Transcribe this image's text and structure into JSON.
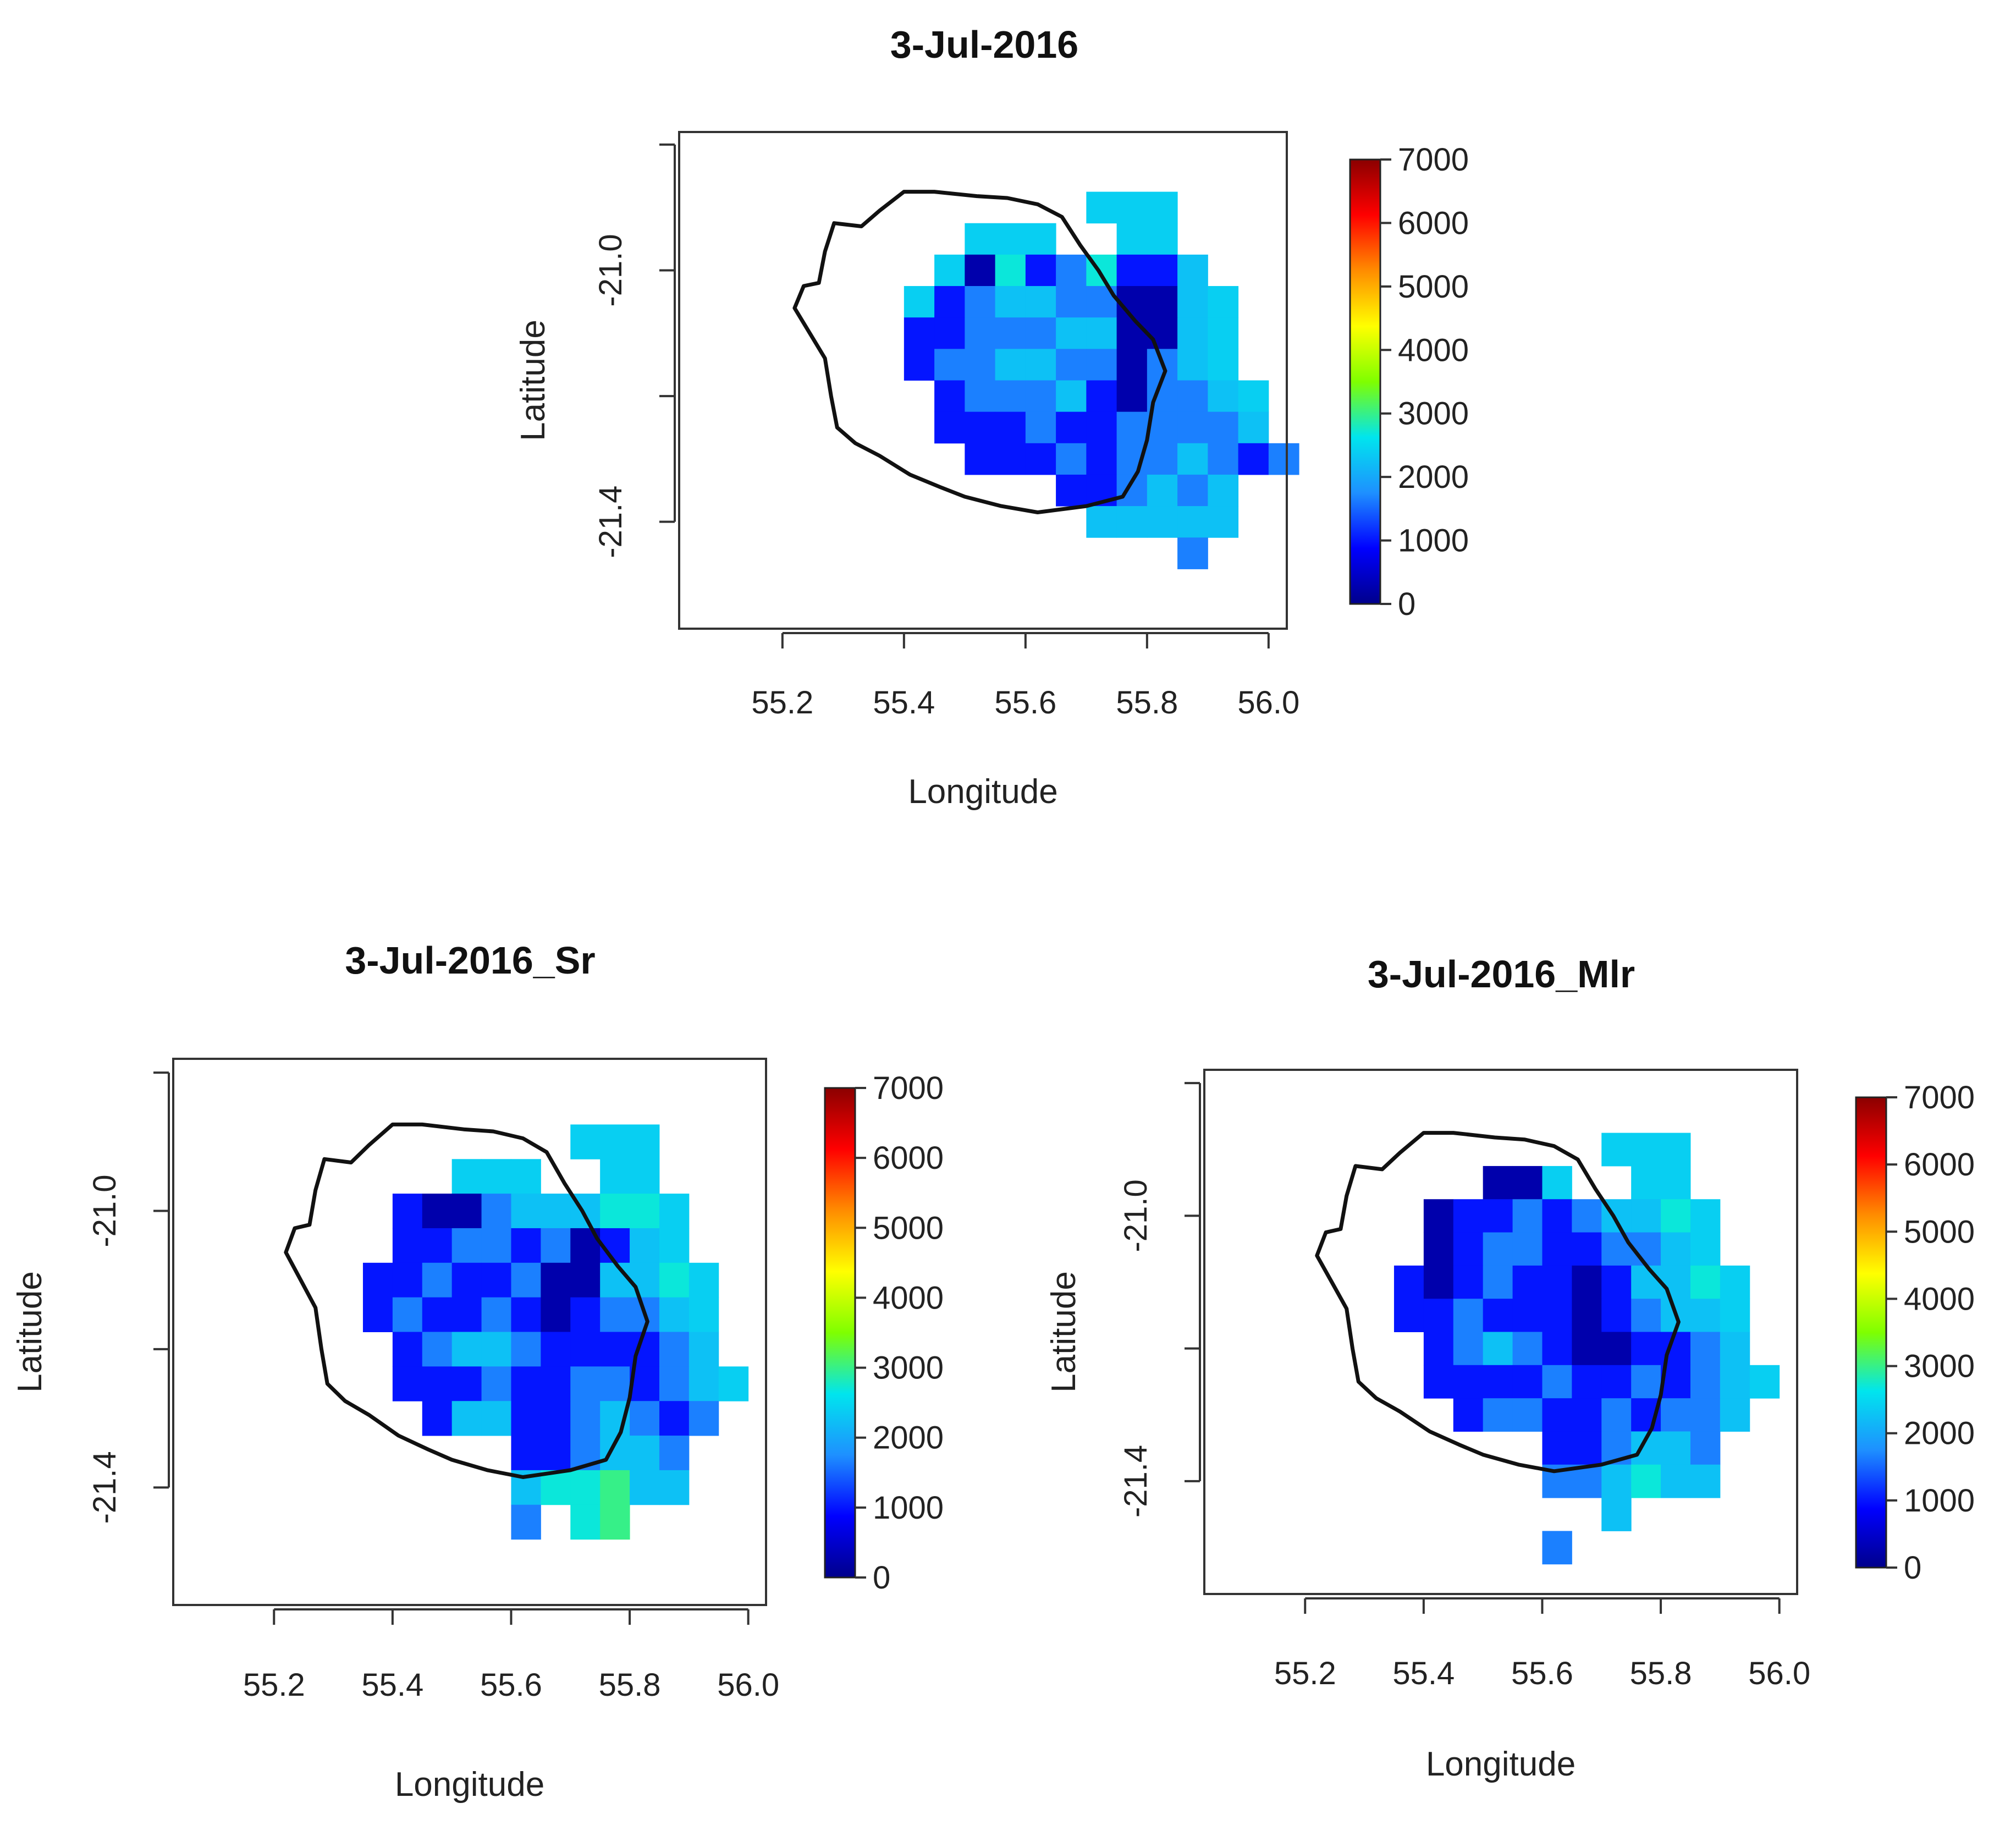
{
  "chart_data": [
    {
      "type": "heatmap",
      "title": "3-Jul-2016",
      "xlabel": "Longitude",
      "ylabel": "Latitude",
      "xlim": [
        55.03,
        56.03
      ],
      "ylim": [
        -21.57,
        -20.78
      ],
      "xticks": [
        "55.2",
        "55.4",
        "55.6",
        "55.8",
        "56.0"
      ],
      "yticks": [
        "-21.0",
        "-21.4"
      ],
      "colorbar": {
        "range": [
          0,
          7000
        ],
        "ticks": [
          "0",
          "1000",
          "2000",
          "3000",
          "4000",
          "5000",
          "6000",
          "7000"
        ]
      },
      "grid": {
        "lon_start": 55.2,
        "lat_start": -20.875,
        "cell": 0.05
      },
      "rows": [
        "..........***.....",
        "......***..**.....",
        ".....*AEBCEBBD....",
        "....*BCDDCCAAD*...",
        "....BBCCCDDAAD*...",
        "....BCCDDCCACD*...",
        ".....BCCCDBACCD*..",
        ".....BBBCBBCCCCD..",
        "......BBBCBCCDCBC.",
        ".........BBCDCD...",
        "..........DDDDD...",
        ".............C...."
      ]
    },
    {
      "type": "heatmap",
      "title": "3-Jul-2016_Sr",
      "xlabel": "Longitude",
      "ylabel": "Latitude",
      "xlim": [
        55.03,
        56.03
      ],
      "ylim": [
        -21.57,
        -20.78
      ],
      "xticks": [
        "55.2",
        "55.4",
        "55.6",
        "55.8",
        "56.0"
      ],
      "yticks": [
        "-21.0",
        "-21.4"
      ],
      "colorbar": {
        "range": [
          0,
          7000
        ],
        "ticks": [
          "0",
          "1000",
          "2000",
          "3000",
          "4000",
          "5000",
          "6000",
          "7000"
        ]
      },
      "grid": {
        "lon_start": 55.2,
        "lat_start": -20.875,
        "cell": 0.05
      },
      "rows": [
        "..........***.....",
        "......***..**.....",
        "....BAACDDDEE*....",
        "....BBCCBCABD*....",
        "...BBCBBCAADDE*...",
        "...BCBBCBABCCD*...",
        "....BCDDCBBBBCD...",
        "....BBBCBBCCBCD*..",
        ".....BDDBBCDCBC...",
        "........BBCDDC....",
        "........DEEFDD....",
        "........C.EF......"
      ]
    },
    {
      "type": "heatmap",
      "title": "3-Jul-2016_Mlr",
      "xlabel": "Longitude",
      "ylabel": "Latitude",
      "xlim": [
        55.03,
        56.03
      ],
      "ylim": [
        -21.57,
        -20.78
      ],
      "xticks": [
        "55.2",
        "55.4",
        "55.6",
        "55.8",
        "56.0"
      ],
      "yticks": [
        "-21.0",
        "-21.4"
      ],
      "colorbar": {
        "range": [
          0,
          7000
        ],
        "ticks": [
          "0",
          "1000",
          "2000",
          "3000",
          "4000",
          "5000",
          "6000",
          "7000"
        ]
      },
      "grid": {
        "lon_start": 55.2,
        "lat_start": -20.875,
        "cell": 0.05
      },
      "rows": [
        "..........***.....",
        "......AA*..**.....",
        "....ABBCBCDDE*....",
        "....ABCCBBCCD*....",
        "...BABCBBABDDE*...",
        "...BBCBBBABCDD*...",
        "....BCDCBAABBCD...",
        "....BBBBCBBCBCD*..",
        ".....BCCBBCBCCD...",
        "........BBCDDC....",
        "........CCDEDD....",
        "..........D.......",
        "........C........."
      ]
    }
  ],
  "legend": {
    "cell_value_key": "A=250, B=1000, C=1650, D=2250, E=2700, F=3000, *=2400; '.'=no data",
    "A": 250,
    "B": 1000,
    "C": 1650,
    "D": 2250,
    "E": 2700,
    "F": 3000,
    "*": 2400
  },
  "colormap": [
    "#00008b",
    "#0000ff",
    "#1e90ff",
    "#00e5ee",
    "#7fff00",
    "#ffff00",
    "#ff8c00",
    "#ff0000",
    "#8b0000"
  ]
}
